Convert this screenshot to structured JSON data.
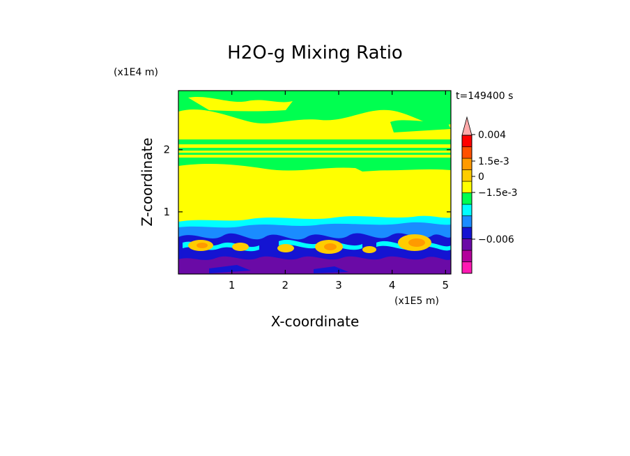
{
  "chart_data": {
    "type": "heatmap",
    "title": "H2O-g Mixing Ratio",
    "xlabel": "X-coordinate",
    "ylabel": "Z-coordinate",
    "x_scale_label": "(x1E5 m)",
    "y_scale_label": "(x1E4 m)",
    "time_label": "t=149400 s",
    "x_ticks": [
      "1",
      "2",
      "3",
      "4",
      "5"
    ],
    "x_tick_values": [
      1,
      2,
      3,
      4,
      5
    ],
    "y_ticks": [
      "1",
      "2"
    ],
    "y_tick_values": [
      1,
      2
    ],
    "xlim": [
      0,
      5.1
    ],
    "ylim": [
      0,
      2.95
    ],
    "colorbar": {
      "colors": [
        "#ff1ab3",
        "#b3009b",
        "#6a0aa6",
        "#1414d2",
        "#1a8cff",
        "#00ffff",
        "#00ff50",
        "#ffff00",
        "#ffcc00",
        "#ff9a00",
        "#ff5000",
        "#ff0000",
        "#ffaaaa"
      ],
      "tick_labels": [
        "0.004",
        "1.5e-3",
        "0",
        "−1.5e-3",
        "−0.006"
      ],
      "extend": "max"
    },
    "field_description_levels": {
      "upper_background": "#00ff50",
      "upper_band": "#ffff00",
      "boundary_layer": [
        "#00ffff",
        "#1a8cff",
        "#1414d2",
        "#6a0aa6",
        "#ffcc00",
        "#ff9a00"
      ]
    }
  }
}
